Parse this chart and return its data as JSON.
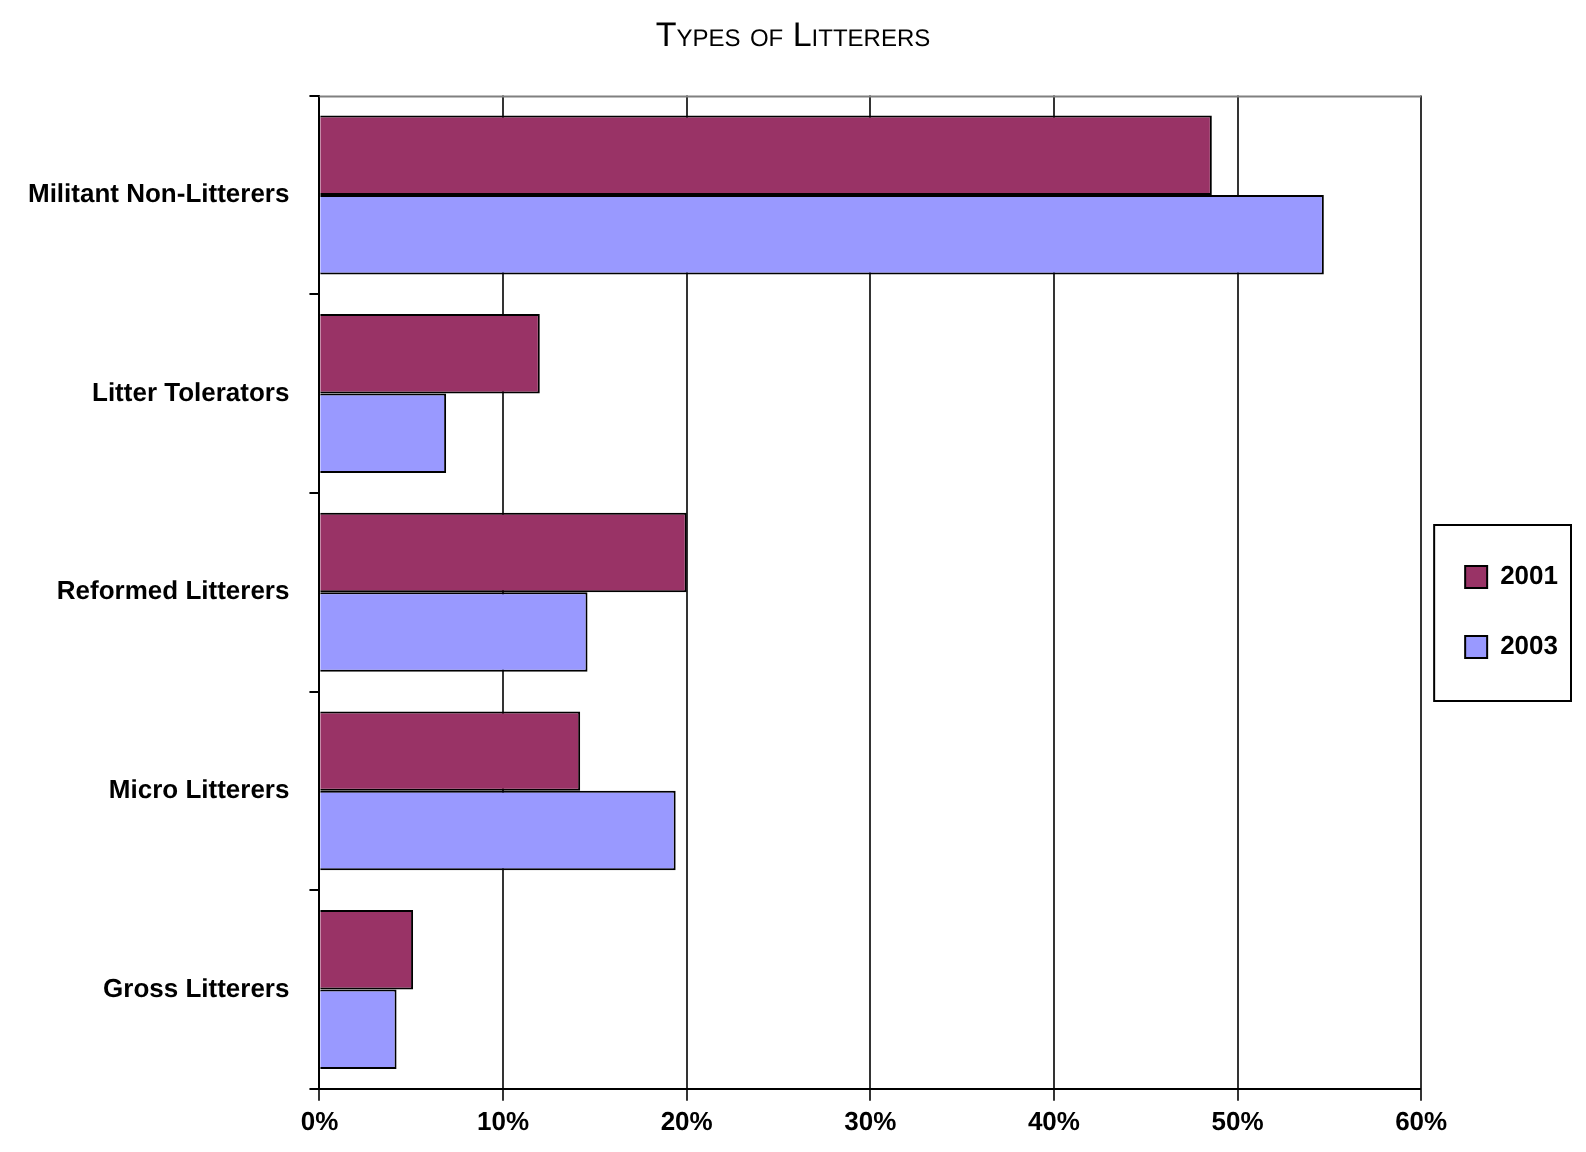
{
  "chart_data": {
    "type": "bar",
    "orientation": "horizontal",
    "title": "Types of Litterers",
    "categories": [
      "Militant Non-Litterers",
      "Litter Tolerators",
      "Reformed Litterers",
      "Micro Litterers",
      "Gross Litterers"
    ],
    "series": [
      {
        "name": "2001",
        "color": "#993366",
        "values": [
          48.6,
          12.0,
          20.0,
          14.2,
          5.1
        ]
      },
      {
        "name": "2003",
        "color": "#9999ff",
        "values": [
          54.7,
          6.9,
          14.6,
          19.4,
          4.2
        ]
      }
    ],
    "xlim": [
      0,
      60
    ],
    "xticks": [
      {
        "value": 0,
        "label": "0%"
      },
      {
        "value": 10,
        "label": "10%"
      },
      {
        "value": 20,
        "label": "20%"
      },
      {
        "value": 30,
        "label": "30%"
      },
      {
        "value": 40,
        "label": "40%"
      },
      {
        "value": 50,
        "label": "50%"
      },
      {
        "value": 60,
        "label": "60%"
      }
    ],
    "grid": "x",
    "legend": "right"
  }
}
